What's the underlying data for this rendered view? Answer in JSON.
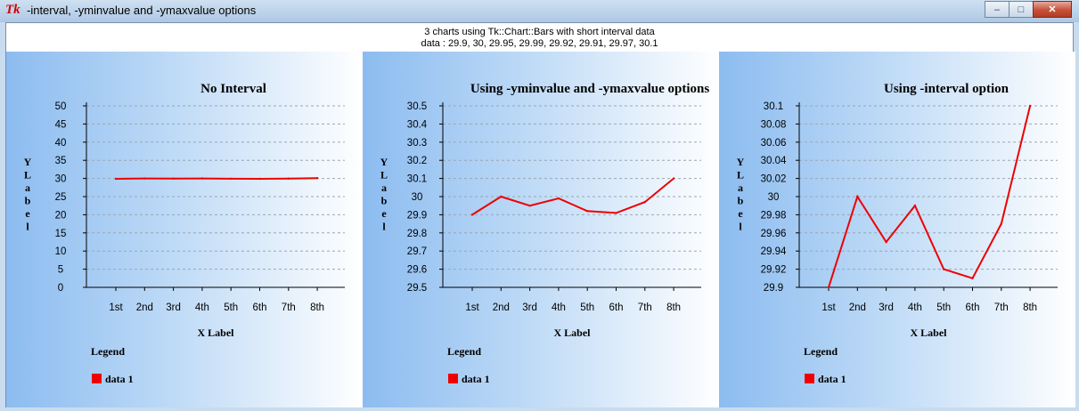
{
  "window": {
    "logo": "Tk",
    "title": "-interval, -yminvalue and -ymaxvalue options",
    "buttons": {
      "minimize": "–",
      "maximize": "□",
      "close": "✕"
    }
  },
  "header": {
    "line1": "3 charts using Tk::Chart::Bars with short interval data",
    "line2": "data : 29.9, 30, 29.95, 29.99, 29.92, 29.91, 29.97, 30.1"
  },
  "colors": {
    "line": "#ee0000",
    "grid": "#9aa6b4",
    "axis": "#000000"
  },
  "chart_data": [
    {
      "type": "line",
      "title": "No Interval",
      "xlabel": "X Label",
      "ylabel": "Y Label",
      "categories": [
        "1st",
        "2nd",
        "3rd",
        "4th",
        "5th",
        "6th",
        "7th",
        "8th"
      ],
      "series": [
        {
          "name": "data 1",
          "values": [
            29.9,
            30,
            29.95,
            29.99,
            29.92,
            29.91,
            29.97,
            30.1
          ]
        }
      ],
      "ylim": [
        0,
        50
      ],
      "yticks": [
        "0",
        "5",
        "10",
        "15",
        "20",
        "25",
        "30",
        "35",
        "40",
        "45",
        "50"
      ],
      "legend_title": "Legend",
      "legend_position": "bottom-left",
      "grid": true
    },
    {
      "type": "line",
      "title": "Using -yminvalue and -ymaxvalue options",
      "xlabel": "X Label",
      "ylabel": "Y Label",
      "categories": [
        "1st",
        "2nd",
        "3rd",
        "4th",
        "5th",
        "6th",
        "7th",
        "8th"
      ],
      "series": [
        {
          "name": "data 1",
          "values": [
            29.9,
            30,
            29.95,
            29.99,
            29.92,
            29.91,
            29.97,
            30.1
          ]
        }
      ],
      "ylim": [
        29.5,
        30.5
      ],
      "yticks": [
        "29.5",
        "29.6",
        "29.7",
        "29.8",
        "29.9",
        "30",
        "30.1",
        "30.2",
        "30.3",
        "30.4",
        "30.5"
      ],
      "legend_title": "Legend",
      "legend_position": "bottom-left",
      "grid": true
    },
    {
      "type": "line",
      "title": "Using -interval option",
      "xlabel": "X Label",
      "ylabel": "Y Label",
      "categories": [
        "1st",
        "2nd",
        "3rd",
        "4th",
        "5th",
        "6th",
        "7th",
        "8th"
      ],
      "series": [
        {
          "name": "data 1",
          "values": [
            29.9,
            30,
            29.95,
            29.99,
            29.92,
            29.91,
            29.97,
            30.1
          ]
        }
      ],
      "ylim": [
        29.9,
        30.1
      ],
      "yticks": [
        "29.9",
        "29.92",
        "29.94",
        "29.96",
        "29.98",
        "30",
        "30.02",
        "30.04",
        "30.06",
        "30.08",
        "30.1"
      ],
      "legend_title": "Legend",
      "legend_position": "bottom-left",
      "grid": true
    }
  ]
}
